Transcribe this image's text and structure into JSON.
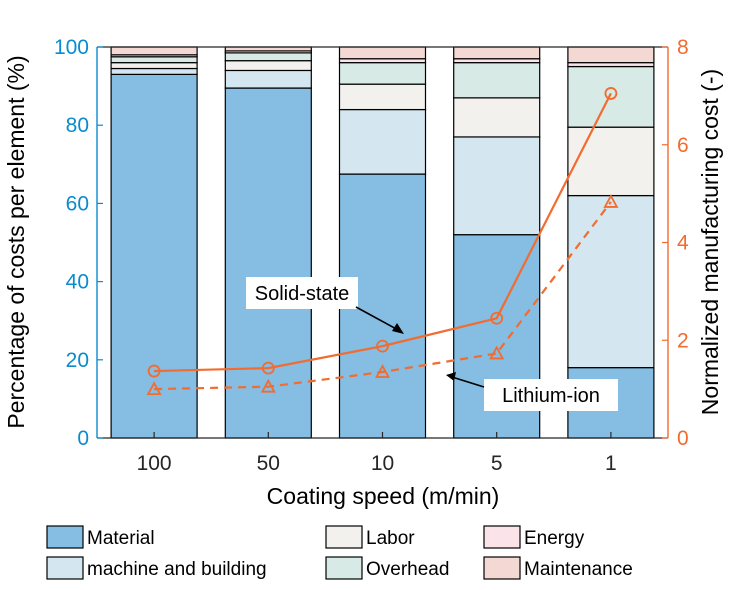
{
  "chart_data": {
    "type": "bar",
    "stacked": true,
    "categories": [
      "100",
      "50",
      "10",
      "5",
      "1"
    ],
    "xlabel": "Coating speed (m/min)",
    "ylabel": "Percentage of costs per element (%)",
    "ylim": [
      0,
      100
    ],
    "yticks": [
      0,
      20,
      40,
      60,
      80,
      100
    ],
    "y2label": "Normalized manufacturing cost (-)",
    "y2lim": [
      0,
      8
    ],
    "y2ticks": [
      0,
      2,
      4,
      6,
      8
    ],
    "series": [
      {
        "name": "Material",
        "color": "#85bde3",
        "values": [
          93,
          89.5,
          67.5,
          52,
          18
        ]
      },
      {
        "name": "machine and building",
        "color": "#d4e6ef",
        "values": [
          1.5,
          4.5,
          16.5,
          25,
          44
        ]
      },
      {
        "name": "Labor",
        "color": "#f2f1ee",
        "values": [
          1.5,
          2.5,
          6.5,
          10,
          17.5
        ]
      },
      {
        "name": "Overhead",
        "color": "#d8eae6",
        "values": [
          1.5,
          2,
          5.5,
          9,
          15.5
        ]
      },
      {
        "name": "Energy",
        "color": "#fbe4e9",
        "values": [
          0.5,
          0.5,
          1,
          1,
          1
        ]
      },
      {
        "name": "Maintenance",
        "color": "#f3d8d3",
        "values": [
          2,
          1,
          3,
          3,
          4
        ]
      }
    ],
    "lines": [
      {
        "name": "Solid-state",
        "axis": "right",
        "style": "solid",
        "marker": "circle",
        "color": "#f26c2f",
        "values": [
          1.37,
          1.43,
          1.88,
          2.45,
          7.05
        ]
      },
      {
        "name": "Lithium-ion",
        "axis": "right",
        "style": "dashed",
        "marker": "triangle",
        "color": "#f26c2f",
        "values": [
          1.0,
          1.05,
          1.35,
          1.73,
          4.83
        ]
      }
    ],
    "annotations": [
      {
        "text": "Solid-state",
        "target": "Solid-state"
      },
      {
        "text": "Lithium-ion",
        "target": "Lithium-ion"
      }
    ],
    "legend": {
      "placement": "bottom",
      "order": [
        "Material",
        "Labor",
        "Energy",
        "machine and building",
        "Overhead",
        "Maintenance"
      ]
    },
    "colors": {
      "left_axis": "#0a8bd0",
      "right_axis": "#f26c2f"
    }
  }
}
